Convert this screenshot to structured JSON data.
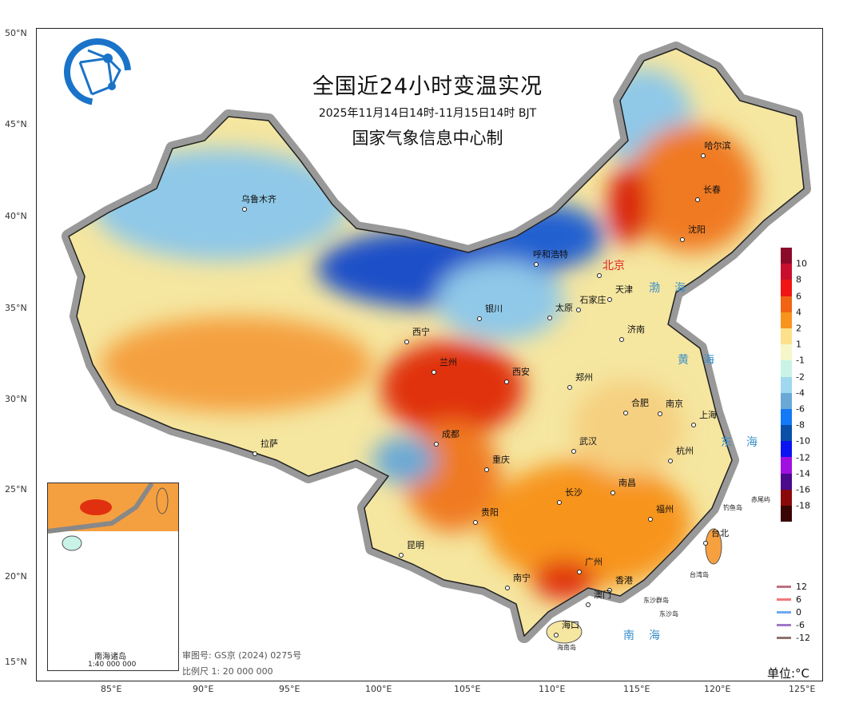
{
  "title": "全国近24小时变温实况",
  "subtitle": "2025年11月14日14时-11月15日14时 BJT",
  "producer": "国家气象信息中心制",
  "logo": "globe-network-logo",
  "axes": {
    "lat_labels": [
      "50°N",
      "45°N",
      "40°N",
      "35°N",
      "30°N",
      "25°N",
      "20°N",
      "15°N"
    ],
    "lon_labels": [
      "85°E",
      "90°E",
      "95°E",
      "100°E",
      "105°E",
      "110°E",
      "115°E",
      "120°E",
      "125°E"
    ]
  },
  "cities": [
    "乌鲁木齐",
    "哈尔滨",
    "长春",
    "沈阳",
    "呼和浩特",
    "北京",
    "天津",
    "石家庄",
    "太原",
    "济南",
    "银川",
    "西宁",
    "兰州",
    "西安",
    "郑州",
    "合肥",
    "南京",
    "上海",
    "成都",
    "拉萨",
    "武汉",
    "杭州",
    "重庆",
    "长沙",
    "南昌",
    "贵阳",
    "福州",
    "昆明",
    "台北",
    "南宁",
    "广州",
    "香港",
    "澳门",
    "海口"
  ],
  "capital_color": "#e02020",
  "seas": [
    "渤海",
    "黄海",
    "东海",
    "南海"
  ],
  "islands": [
    "钓鱼岛",
    "赤尾屿",
    "台湾岛",
    "东沙群岛",
    "东沙岛",
    "海南岛"
  ],
  "colorbar": {
    "labels": [
      "10",
      "8",
      "6",
      "4",
      "2",
      "1",
      "-1",
      "-2",
      "-4",
      "-6",
      "-8",
      "-10",
      "-12",
      "-14",
      "-16",
      "-18"
    ],
    "colors": [
      "#8b0a2a",
      "#c8102e",
      "#f01414",
      "#f06414",
      "#f7941d",
      "#fde08a",
      "#f5f7c8",
      "#c9f3e6",
      "#9fd8ef",
      "#6aa9d6",
      "#1479f5",
      "#0a4fa8",
      "#0a14f0",
      "#a010e0",
      "#4a0a8c",
      "#8a0a0a",
      "#3a0505"
    ]
  },
  "line_legend": [
    {
      "label": "12",
      "color": "#c07080"
    },
    {
      "label": "6",
      "color": "#f07878"
    },
    {
      "label": "0",
      "color": "#70a8f0"
    },
    {
      "label": "-6",
      "color": "#a078c8"
    },
    {
      "label": "-12",
      "color": "#907070"
    }
  ],
  "unit": "单位:°C",
  "map_review_no": "审图号: GS京 (2024) 0275号",
  "scale": "比例尺 1: 20 000 000",
  "inset": {
    "title": "南海诸岛",
    "scale": "1:40 000 000"
  }
}
